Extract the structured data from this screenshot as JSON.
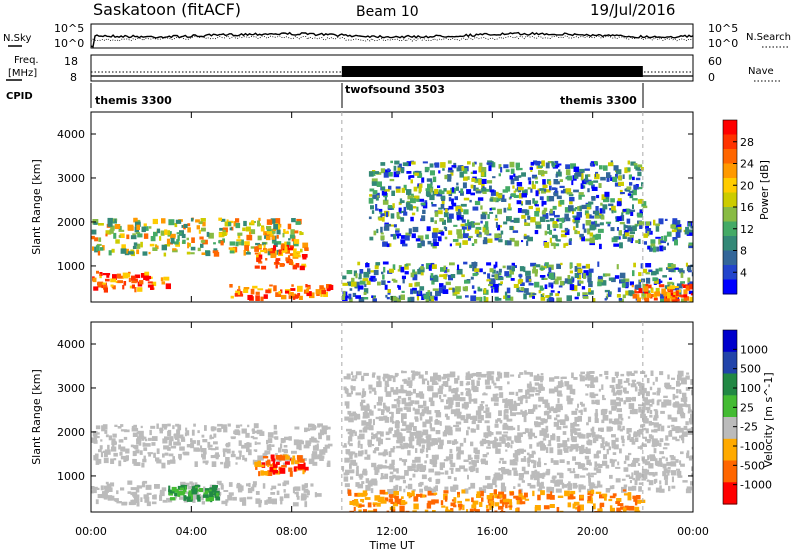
{
  "header": {
    "station": "Saskatoon (fitACF)",
    "beam": "Beam 10",
    "date": "19/Jul/2016"
  },
  "noise_panel": {
    "left_label": "N.Sky",
    "right_label": "N.Search",
    "left_ticks": [
      "10^5",
      "10^0"
    ],
    "right_ticks": [
      "10^5",
      "10^0"
    ]
  },
  "freq_panel": {
    "left_label_line1": "Freq.",
    "left_label_line2": "[MHz]",
    "right_label": "Nave",
    "left_ticks": [
      "18",
      "8"
    ],
    "right_ticks": [
      "60",
      "0"
    ]
  },
  "cpid": {
    "label": "CPID",
    "segments": [
      {
        "name": "themis 3300",
        "start_hour": 0,
        "end_hour": 10
      },
      {
        "name": "twofsound 3503",
        "start_hour": 10,
        "end_hour": 22
      },
      {
        "name": "themis 3300",
        "start_hour": 22,
        "end_hour": 24
      }
    ]
  },
  "x_axis": {
    "label": "Time UT",
    "ticks": [
      "00:00",
      "04:00",
      "08:00",
      "12:00",
      "16:00",
      "20:00",
      "00:00"
    ],
    "range_hours": [
      0,
      24
    ]
  },
  "chart_data": [
    {
      "type": "heatmap",
      "variable": "power",
      "ylabel": "Slant Range [km]",
      "ylim": [
        180,
        4500
      ],
      "yticks": [
        1000,
        2000,
        3000,
        4000
      ],
      "colorbar": {
        "label": "Power [dB]",
        "ticks": [
          "28",
          "24",
          "20",
          "16",
          "12",
          "8",
          "4"
        ],
        "colors": [
          "#ff0000",
          "#ff3300",
          "#ff6600",
          "#ff9900",
          "#ffcc00",
          "#cccc00",
          "#88bb44",
          "#44aa66",
          "#338877",
          "#336699",
          "#2244cc",
          "#0000ff"
        ]
      },
      "echo_regions": [
        {
          "t0": 0.0,
          "t1": 8.6,
          "r0": 1300,
          "r1": 2100,
          "level": "medium-high"
        },
        {
          "t0": 0.0,
          "t1": 3.0,
          "r0": 500,
          "r1": 900,
          "level": "high"
        },
        {
          "t0": 5.5,
          "t1": 9.5,
          "r0": 300,
          "r1": 600,
          "level": "high"
        },
        {
          "t0": 6.5,
          "t1": 8.5,
          "r0": 1000,
          "r1": 1500,
          "level": "high"
        },
        {
          "t0": 11.0,
          "t1": 22.0,
          "r0": 1500,
          "r1": 3400,
          "level": "medium"
        },
        {
          "t0": 10.0,
          "t1": 24.0,
          "r0": 250,
          "r1": 1100,
          "level": "medium"
        },
        {
          "t0": 21.5,
          "t1": 24.0,
          "r0": 250,
          "r1": 600,
          "level": "high"
        },
        {
          "t0": 22.0,
          "t1": 24.0,
          "r0": 1400,
          "r1": 2100,
          "level": "medium"
        }
      ]
    },
    {
      "type": "heatmap",
      "variable": "velocity",
      "ylabel": "Slant Range [km]",
      "ylim": [
        180,
        4500
      ],
      "yticks": [
        1000,
        2000,
        3000,
        4000
      ],
      "colorbar": {
        "label": "Velocity [m s^-1]",
        "ticks": [
          "1000",
          "500",
          "100",
          "25",
          "-25",
          "-100",
          "-500",
          "-1000"
        ],
        "colors": [
          "#0000cc",
          "#2244aa",
          "#228844",
          "#44bb33",
          "#bbbbbb",
          "#ffaa00",
          "#ff6600",
          "#ff0000"
        ]
      },
      "echo_regions": [
        {
          "t0": 0.0,
          "t1": 9.5,
          "r0": 1300,
          "r1": 2200,
          "level": "ground-scatter"
        },
        {
          "t0": 0.0,
          "t1": 9.0,
          "r0": 400,
          "r1": 900,
          "level": "ground-scatter"
        },
        {
          "t0": 3.0,
          "t1": 5.0,
          "r0": 500,
          "r1": 800,
          "level": "positive"
        },
        {
          "t0": 6.5,
          "t1": 8.5,
          "r0": 1100,
          "r1": 1500,
          "level": "negative"
        },
        {
          "t0": 10.0,
          "t1": 24.0,
          "r0": 700,
          "r1": 3400,
          "level": "ground-scatter"
        },
        {
          "t0": 10.0,
          "t1": 22.0,
          "r0": 200,
          "r1": 700,
          "level": "slightly-negative"
        }
      ]
    }
  ]
}
